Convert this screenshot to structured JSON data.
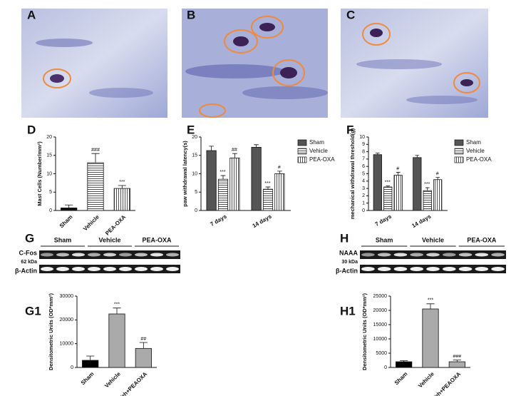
{
  "panel_labels": [
    "A",
    "B",
    "C",
    "D",
    "E",
    "F",
    "G",
    "H",
    "G1",
    "H1"
  ],
  "blots": [
    {
      "groups": [
        "Sham",
        "Vehicle",
        "PEA-OXA"
      ],
      "rows": [
        "C-Fos",
        "β-Actin"
      ],
      "marker": "62 kDa"
    },
    {
      "groups": [
        "Sham",
        "Vehicle",
        "PEA-OXA"
      ],
      "rows": [
        "NAAA",
        "β-Actin"
      ],
      "marker": "30 kDa"
    }
  ],
  "chart_data": [
    {
      "type": "bar",
      "ylabel": "Mast Cells (Number/mm²)",
      "categories": [
        "Sham",
        "Vehicle",
        "PEA-OXA"
      ],
      "values": [
        0.7,
        13,
        6
      ],
      "errors": [
        0.8,
        2.5,
        0.8
      ],
      "colors": [
        "#111111",
        "#ffffff",
        "#ffffff"
      ],
      "hatch": [
        "none",
        "horizontal",
        "vertical"
      ],
      "annotations": [
        {
          "text": "###",
          "category": "Vehicle"
        },
        {
          "text": "***",
          "category": "PEA-OXA"
        }
      ],
      "ylim": [
        0,
        20
      ],
      "yticks": [
        0,
        5,
        10,
        15,
        20
      ],
      "xtick_rotation": 45
    },
    {
      "type": "grouped-bar",
      "ylabel": "paw withdrawal latency(s)",
      "categories": [
        "7 days",
        "14 days"
      ],
      "series": [
        {
          "name": "Sham",
          "color": "#555555",
          "hatch": "none",
          "values": [
            16.3,
            17.2
          ],
          "errors": [
            1.2,
            0.7
          ]
        },
        {
          "name": "Vehicle",
          "color": "#ffffff",
          "hatch": "horizontal",
          "values": [
            8.5,
            5.8
          ],
          "errors": [
            1.0,
            0.6
          ]
        },
        {
          "name": "PEA-OXA",
          "color": "#ffffff",
          "hatch": "vertical",
          "values": [
            14.3,
            10
          ],
          "errors": [
            1.2,
            0.7
          ]
        }
      ],
      "annotations": [
        {
          "text": "***",
          "series": "Vehicle",
          "category": "7 days"
        },
        {
          "text": "##",
          "series": "PEA-OXA",
          "category": "7 days"
        },
        {
          "text": "***",
          "series": "Vehicle",
          "category": "14 days"
        },
        {
          "text": "#",
          "series": "PEA-OXA",
          "category": "14 days"
        }
      ],
      "ylim": [
        0,
        20
      ],
      "yticks": [
        0,
        5,
        10,
        15,
        20
      ],
      "legend": "right",
      "xtick_rotation": 30
    },
    {
      "type": "grouped-bar",
      "ylabel": "mechanical withdrawal threshold(g)",
      "categories": [
        "7 days",
        "14 days"
      ],
      "series": [
        {
          "name": "Sham",
          "color": "#555555",
          "hatch": "none",
          "values": [
            7.6,
            7.2
          ],
          "errors": [
            0.2,
            0.3
          ]
        },
        {
          "name": "Vehicle",
          "color": "#ffffff",
          "hatch": "horizontal",
          "values": [
            3.2,
            2.7
          ],
          "errors": [
            0.15,
            0.4
          ]
        },
        {
          "name": "PEA-OXA",
          "color": "#ffffff",
          "hatch": "vertical",
          "values": [
            4.8,
            4.2
          ],
          "errors": [
            0.4,
            0.3
          ]
        }
      ],
      "annotations": [
        {
          "text": "***",
          "series": "Vehicle",
          "category": "7 days"
        },
        {
          "text": "#",
          "series": "PEA-OXA",
          "category": "7 days"
        },
        {
          "text": "***",
          "series": "Vehicle",
          "category": "14 days"
        },
        {
          "text": "#",
          "series": "PEA-OXA",
          "category": "14 days"
        }
      ],
      "ylim": [
        0,
        10
      ],
      "yticks": [
        0,
        1,
        2,
        3,
        4,
        5,
        6,
        7,
        8,
        9,
        10
      ],
      "legend": "right",
      "xtick_rotation": 30
    },
    {
      "type": "bar",
      "ylabel": "Densitometric Units (OD*mm²)",
      "categories": [
        "Sham",
        "Vehicle",
        "Veh+PEAOXA"
      ],
      "values": [
        3000,
        22500,
        8000
      ],
      "errors": [
        1800,
        2500,
        2500
      ],
      "colors": [
        "#000000",
        "#aaaaaa",
        "#aaaaaa"
      ],
      "hatch": [
        "none",
        "none",
        "none"
      ],
      "annotations": [
        {
          "text": "***",
          "category": "Vehicle"
        },
        {
          "text": "##",
          "category": "Veh+PEAOXA"
        }
      ],
      "ylim": [
        0,
        30000
      ],
      "yticks": [
        0,
        10000,
        20000,
        30000
      ],
      "xtick_rotation": 45
    },
    {
      "type": "bar",
      "ylabel": "Densitometric Units (OD*mm²)",
      "categories": [
        "Sham",
        "Vehicle",
        "Veh+PEAOXA"
      ],
      "values": [
        2000,
        20500,
        2000
      ],
      "errors": [
        400,
        1800,
        600
      ],
      "colors": [
        "#000000",
        "#aaaaaa",
        "#aaaaaa"
      ],
      "hatch": [
        "none",
        "none",
        "none"
      ],
      "annotations": [
        {
          "text": "***",
          "category": "Vehicle"
        },
        {
          "text": "###",
          "category": "Veh+PEAOXA"
        }
      ],
      "ylim": [
        0,
        25000
      ],
      "yticks": [
        0,
        5000,
        10000,
        15000,
        20000,
        25000
      ],
      "xtick_rotation": 45
    }
  ]
}
